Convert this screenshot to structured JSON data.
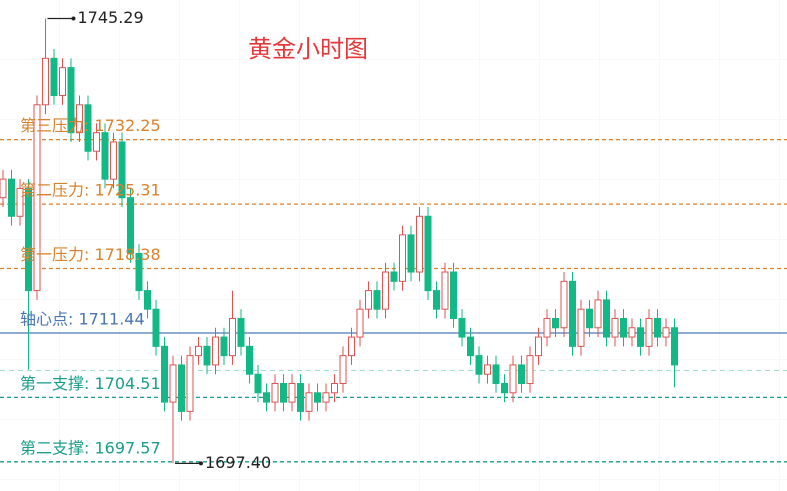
{
  "chart_data": {
    "type": "candlestick",
    "title": "黄金小时图",
    "ylim": [
      1694.43,
      1747.28
    ],
    "grid": true,
    "up_color": "#e05353",
    "down_color": "#12b886",
    "open": [
      1726,
      1728,
      1724,
      1727,
      1716,
      1736,
      1741,
      1737,
      1740,
      1733,
      1736,
      1731,
      1733,
      1728,
      1732,
      1726,
      1720,
      1716,
      1714,
      1710,
      1704,
      1708,
      1703,
      1709,
      1710,
      1708,
      1711,
      1709,
      1713,
      1710,
      1707,
      1705,
      1704,
      1706,
      1704,
      1706,
      1703,
      1705,
      1704,
      1705,
      1706,
      1709,
      1711,
      1714,
      1716,
      1714,
      1718,
      1717,
      1722,
      1718,
      1724,
      1716,
      1714,
      1718,
      1713,
      1711,
      1709,
      1707,
      1708,
      1706,
      1705,
      1708,
      1706,
      1709,
      1711,
      1713,
      1712,
      1717,
      1710,
      1714,
      1712,
      1715,
      1711,
      1713,
      1711,
      1712,
      1710,
      1713,
      1711,
      1712
    ],
    "high": [
      1729,
      1729,
      1728,
      1728,
      1737,
      1745.29,
      1742,
      1741,
      1741,
      1737,
      1737,
      1734,
      1734,
      1733,
      1733,
      1727,
      1721,
      1717,
      1715,
      1711,
      1709,
      1709,
      1710,
      1711,
      1711,
      1712,
      1712,
      1716,
      1714,
      1711,
      1708,
      1706,
      1707,
      1707,
      1707,
      1707,
      1706,
      1706,
      1706,
      1707,
      1710,
      1712,
      1715,
      1717,
      1717,
      1719,
      1719,
      1723,
      1723,
      1725,
      1725,
      1717,
      1719,
      1719,
      1714,
      1712,
      1710,
      1709,
      1709,
      1707,
      1709,
      1709,
      1710,
      1712,
      1714,
      1714,
      1718,
      1718,
      1715,
      1715,
      1716,
      1716,
      1714,
      1714,
      1713,
      1713,
      1714,
      1714,
      1713,
      1713
    ],
    "low": [
      1725,
      1723,
      1723,
      1707.5,
      1715,
      1735,
      1736,
      1736,
      1732,
      1732,
      1730,
      1730,
      1727,
      1727,
      1725,
      1719,
      1715,
      1713,
      1709,
      1703,
      1697.4,
      1702,
      1702,
      1708,
      1707,
      1707,
      1708,
      1708,
      1709,
      1706,
      1704,
      1703,
      1703,
      1703,
      1703,
      1702,
      1702,
      1703,
      1703,
      1704,
      1705,
      1708,
      1710,
      1713,
      1713,
      1713,
      1716,
      1716,
      1717,
      1717,
      1715,
      1713,
      1713,
      1712,
      1710,
      1708,
      1706,
      1706,
      1705,
      1704,
      1704,
      1705,
      1705,
      1708,
      1710,
      1711,
      1711,
      1709,
      1709,
      1711,
      1711,
      1710,
      1710,
      1710,
      1710,
      1709,
      1709,
      1710,
      1710,
      1705.6
    ],
    "close": [
      1728,
      1724,
      1727,
      1716,
      1736,
      1741,
      1737,
      1740,
      1733,
      1736,
      1731,
      1733,
      1728,
      1732,
      1726,
      1720,
      1716,
      1714,
      1710,
      1704,
      1708,
      1703,
      1709,
      1710,
      1708,
      1711,
      1709,
      1713,
      1710,
      1707,
      1705,
      1704,
      1706,
      1704,
      1706,
      1703,
      1705,
      1704,
      1705,
      1706,
      1709,
      1711,
      1714,
      1716,
      1714,
      1718,
      1717,
      1722,
      1718,
      1724,
      1716,
      1714,
      1718,
      1713,
      1711,
      1709,
      1707,
      1708,
      1706,
      1705,
      1708,
      1706,
      1709,
      1711,
      1713,
      1712,
      1717,
      1710,
      1714,
      1712,
      1715,
      1711,
      1713,
      1711,
      1712,
      1710,
      1713,
      1711,
      1712,
      1708
    ],
    "levels": [
      {
        "label": "第三压力: 1732.25",
        "value": 1732.25,
        "color": "#d9822b",
        "dashed": true
      },
      {
        "label": "第二压力: 1725.31",
        "value": 1725.31,
        "color": "#d9822b",
        "dashed": true
      },
      {
        "label": "第一压力: 1718.38",
        "value": 1718.38,
        "color": "#d9822b",
        "dashed": true
      },
      {
        "label": "轴心点: 1711.44",
        "value": 1711.44,
        "color": "#4a77b4",
        "dashed": false
      },
      {
        "label": "第一支撑: 1704.51",
        "value": 1704.51,
        "color": "#1a9e8a",
        "dashed": true
      },
      {
        "label": "第二支撑: 1697.57",
        "value": 1697.57,
        "color": "#1a9e8a",
        "dashed": true
      }
    ],
    "price_line": {
      "value": 1707.4,
      "color": "#9fdcc9"
    },
    "extremes": [
      {
        "value": 1745.29,
        "label": "1745.29"
      },
      {
        "value": 1697.4,
        "label": "1697.40"
      }
    ]
  }
}
